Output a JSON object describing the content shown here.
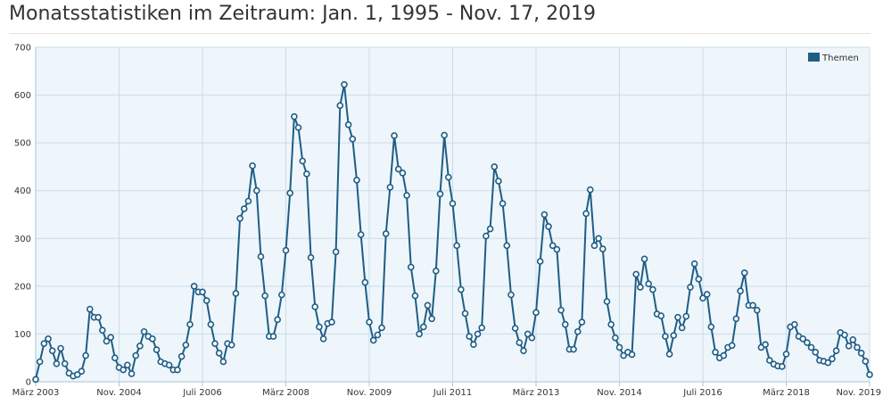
{
  "page": {
    "title": "Monatsstatistiken im Zeitraum: Jan. 1, 1995 - Nov. 17, 2019"
  },
  "colors": {
    "line": "#1f5d85",
    "marker_fill": "#ffffff",
    "plot_bg": "#eef6fb",
    "grid": "#c8dcea",
    "axis": "#a9c6da",
    "legend_swatch": "#1f5d85"
  },
  "chart_data": {
    "type": "line",
    "title": "",
    "xlabel": "",
    "ylabel": "",
    "ylim": [
      0,
      700
    ],
    "y_ticks": [
      "0",
      "100",
      "200",
      "300",
      "400",
      "500",
      "600",
      "700"
    ],
    "x_tick_labels": [
      "März 2003",
      "Nov. 2004",
      "Juli 2006",
      "März 2008",
      "Nov. 2009",
      "Juli 2011",
      "März 2013",
      "Nov. 2014",
      "Juli 2016",
      "März 2018",
      "Nov. 2019"
    ],
    "grid": true,
    "legend": "top-right",
    "series": [
      {
        "name": "Themen",
        "x_start": "2003-03",
        "x_end": "2019-11",
        "values": [
          5,
          42,
          80,
          90,
          65,
          38,
          70,
          38,
          18,
          12,
          15,
          22,
          55,
          152,
          135,
          135,
          108,
          85,
          93,
          50,
          30,
          25,
          35,
          17,
          55,
          75,
          105,
          95,
          90,
          67,
          42,
          38,
          35,
          25,
          25,
          53,
          77,
          120,
          200,
          188,
          188,
          170,
          120,
          80,
          60,
          42,
          80,
          77,
          185,
          342,
          362,
          378,
          452,
          400,
          262,
          180,
          95,
          95,
          130,
          182,
          275,
          395,
          555,
          532,
          462,
          435,
          260,
          157,
          115,
          90,
          122,
          125,
          272,
          578,
          622,
          538,
          508,
          422,
          308,
          208,
          125,
          87,
          98,
          113,
          310,
          407,
          515,
          445,
          437,
          390,
          240,
          180,
          100,
          115,
          160,
          132,
          232,
          393,
          516,
          428,
          373,
          285,
          193,
          143,
          95,
          78,
          100,
          113,
          305,
          320,
          450,
          420,
          373,
          285,
          182,
          112,
          82,
          65,
          100,
          92,
          145,
          252,
          350,
          325,
          285,
          277,
          150,
          120,
          68,
          68,
          105,
          125,
          352,
          402,
          285,
          300,
          278,
          168,
          120,
          92,
          72,
          55,
          62,
          57,
          225,
          198,
          257,
          205,
          193,
          142,
          138,
          95,
          58,
          97,
          135,
          113,
          137,
          198,
          247,
          215,
          175,
          183,
          115,
          62,
          50,
          55,
          72,
          76,
          132,
          190,
          228,
          160,
          160,
          150,
          72,
          78,
          45,
          37,
          33,
          32,
          58,
          115,
          120,
          95,
          90,
          82,
          72,
          62,
          45,
          43,
          40,
          48,
          65,
          103,
          98,
          75,
          88,
          72,
          60,
          43,
          15
        ]
      }
    ]
  }
}
